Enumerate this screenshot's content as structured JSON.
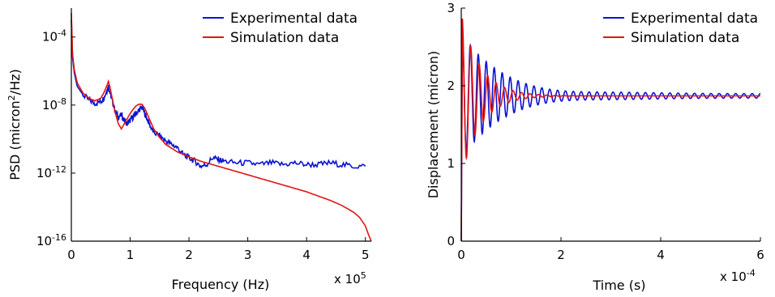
{
  "colors": {
    "experimental": "#0a14d2",
    "simulation": "#e31414"
  },
  "chart_data": [
    {
      "type": "line",
      "xlabel": "Frequency (Hz)",
      "ylabel_parts": [
        "PSD (micron",
        "2",
        "/Hz)"
      ],
      "x_multiplier": {
        "base": "x 10",
        "exp": "5"
      },
      "xlim": [
        0,
        5.1
      ],
      "ylim_log10": [
        -16,
        -2.3
      ],
      "y_scale": "log",
      "x_ticks": [
        0,
        1,
        2,
        3,
        4,
        5
      ],
      "y_ticks": [
        {
          "value": -4,
          "base": "10",
          "exp": "-4"
        },
        {
          "value": -8,
          "base": "10",
          "exp": "-8"
        },
        {
          "value": -12,
          "base": "10",
          "exp": "-12"
        },
        {
          "value": -16,
          "base": "10",
          "exp": "-16"
        }
      ],
      "legend_position": "top-right",
      "series": [
        {
          "name": "Experimental data",
          "color_key": "experimental",
          "x": [
            0.0,
            0.02,
            0.05,
            0.1,
            0.2,
            0.3,
            0.4,
            0.5,
            0.55,
            0.6,
            0.63,
            0.66,
            0.7,
            0.75,
            0.8,
            0.85,
            0.9,
            0.95,
            1.0,
            1.05,
            1.1,
            1.15,
            1.2,
            1.25,
            1.3,
            1.35,
            1.4,
            1.5,
            1.6,
            1.7,
            1.8,
            1.9,
            2.0,
            2.1,
            2.2,
            2.3,
            2.4,
            2.5,
            2.6,
            2.8,
            3.0,
            3.2,
            3.4,
            3.6,
            3.8,
            4.0,
            4.2,
            4.4,
            4.6,
            4.8,
            5.0
          ],
          "log10_y": [
            -3.0,
            -5.2,
            -6.1,
            -6.9,
            -7.4,
            -7.7,
            -7.9,
            -7.8,
            -7.6,
            -7.2,
            -6.9,
            -7.3,
            -7.8,
            -8.4,
            -8.7,
            -8.6,
            -8.9,
            -9.1,
            -8.9,
            -8.7,
            -8.5,
            -8.3,
            -8.1,
            -8.5,
            -8.9,
            -9.3,
            -9.6,
            -9.8,
            -10.1,
            -10.3,
            -10.5,
            -10.9,
            -11.1,
            -11.3,
            -11.6,
            -11.5,
            -11.1,
            -11.2,
            -11.3,
            -11.4,
            -11.4,
            -11.5,
            -11.4,
            -11.5,
            -11.4,
            -11.5,
            -11.5,
            -11.4,
            -11.5,
            -11.6,
            -11.6
          ]
        },
        {
          "name": "Simulation data",
          "color_key": "simulation",
          "x": [
            0.0,
            0.02,
            0.05,
            0.1,
            0.2,
            0.3,
            0.4,
            0.5,
            0.55,
            0.6,
            0.63,
            0.66,
            0.7,
            0.75,
            0.8,
            0.85,
            0.9,
            0.95,
            1.0,
            1.05,
            1.1,
            1.15,
            1.2,
            1.25,
            1.3,
            1.35,
            1.4,
            1.5,
            1.6,
            1.8,
            2.0,
            2.2,
            2.4,
            2.6,
            2.8,
            3.0,
            3.2,
            3.4,
            3.6,
            3.8,
            4.0,
            4.2,
            4.4,
            4.6,
            4.8,
            4.9,
            5.0,
            5.05,
            5.1
          ],
          "log10_y": [
            -2.6,
            -5.0,
            -5.9,
            -6.7,
            -7.3,
            -7.6,
            -7.75,
            -7.6,
            -7.3,
            -6.9,
            -6.6,
            -7.0,
            -7.7,
            -8.5,
            -9.1,
            -9.4,
            -9.1,
            -8.8,
            -8.5,
            -8.25,
            -8.05,
            -7.95,
            -7.95,
            -8.2,
            -8.6,
            -9.0,
            -9.4,
            -9.9,
            -10.3,
            -10.75,
            -11.05,
            -11.3,
            -11.5,
            -11.7,
            -11.9,
            -12.1,
            -12.3,
            -12.5,
            -12.7,
            -12.9,
            -13.1,
            -13.35,
            -13.6,
            -13.9,
            -14.3,
            -14.6,
            -15.1,
            -15.6,
            -16.0
          ]
        }
      ]
    },
    {
      "type": "line",
      "xlabel": "Time (s)",
      "ylabel": "Displacement (micron)",
      "x_multiplier": {
        "base": "x 10",
        "exp": "-4"
      },
      "xlim": [
        0,
        6
      ],
      "ylim": [
        0,
        3
      ],
      "x_ticks": [
        0,
        2,
        4,
        6
      ],
      "y_ticks": [
        0,
        1,
        2,
        3
      ],
      "legend_position": "top-right",
      "series": [
        {
          "name": "Experimental data",
          "color_key": "experimental",
          "model": {
            "equilibrium": 1.87,
            "amplitude": 0.78,
            "decay_tau": 0.9,
            "period": 0.16,
            "start": 0.0,
            "ripple": 0.03,
            "ripple_period": 0.165
          }
        },
        {
          "name": "Simulation data",
          "color_key": "simulation",
          "model": {
            "equilibrium": 1.87,
            "amplitude": 1.0,
            "decay_tau": 0.38,
            "period": 0.17,
            "start": 0.0,
            "ripple": 0.0,
            "ripple_period": 0.17
          }
        }
      ]
    }
  ]
}
